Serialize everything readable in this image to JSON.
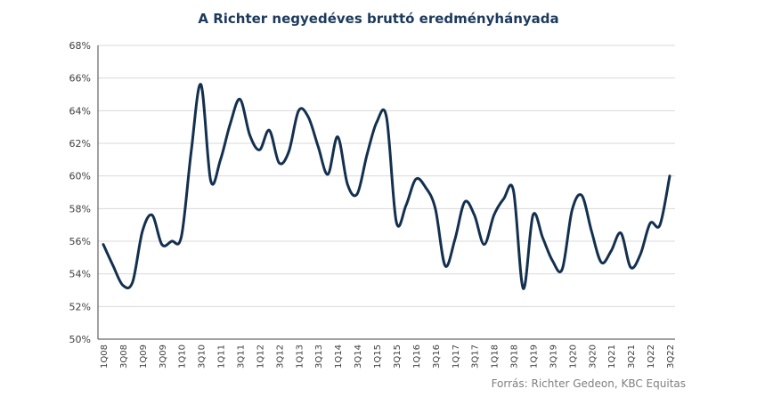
{
  "chart_data": {
    "type": "line",
    "title": "A Richter negyedéves bruttó eredményhányada",
    "xlabel": "",
    "ylabel": "",
    "ylim": [
      50,
      68
    ],
    "y_ticks": [
      "50%",
      "52%",
      "54%",
      "56%",
      "58%",
      "60%",
      "62%",
      "64%",
      "66%",
      "68%"
    ],
    "grid": "horizontal",
    "legend": "none",
    "x": [
      "1Q08",
      "2Q08",
      "3Q08",
      "4Q08",
      "1Q09",
      "2Q09",
      "3Q09",
      "4Q09",
      "1Q10",
      "2Q10",
      "3Q10",
      "4Q10",
      "1Q11",
      "2Q11",
      "3Q11",
      "4Q11",
      "1Q12",
      "2Q12",
      "3Q12",
      "4Q12",
      "1Q13",
      "2Q13",
      "3Q13",
      "4Q13",
      "1Q14",
      "2Q14",
      "3Q14",
      "4Q14",
      "1Q15",
      "2Q15",
      "3Q15",
      "4Q15",
      "1Q16",
      "2Q16",
      "3Q16",
      "4Q16",
      "1Q17",
      "2Q17",
      "3Q17",
      "4Q17",
      "1Q18",
      "2Q18",
      "3Q18",
      "4Q18",
      "1Q19",
      "2Q19",
      "3Q19",
      "4Q19",
      "1Q20",
      "2Q20",
      "3Q20",
      "4Q20",
      "1Q21",
      "2Q21",
      "3Q21",
      "4Q21",
      "1Q22",
      "2Q22",
      "3Q22"
    ],
    "x_tick_labels": [
      "1Q08",
      "3Q08",
      "1Q09",
      "3Q09",
      "1Q10",
      "3Q10",
      "1Q11",
      "3Q11",
      "1Q12",
      "3Q12",
      "1Q13",
      "3Q13",
      "1Q14",
      "3Q14",
      "1Q15",
      "3Q15",
      "1Q16",
      "3Q16",
      "1Q17",
      "3Q17",
      "1Q18",
      "3Q18",
      "1Q19",
      "3Q19",
      "1Q20",
      "3Q20",
      "1Q21",
      "3Q21",
      "1Q22",
      "3Q22"
    ],
    "series": [
      {
        "name": "",
        "color": "#14304f",
        "values": [
          55.8,
          54.5,
          53.3,
          53.5,
          56.6,
          57.6,
          55.8,
          56.0,
          56.3,
          61.5,
          65.6,
          59.7,
          61.0,
          63.2,
          64.7,
          62.5,
          61.6,
          62.8,
          60.8,
          61.5,
          64.0,
          63.6,
          61.8,
          60.1,
          62.4,
          59.5,
          58.9,
          61.3,
          63.3,
          63.6,
          57.2,
          58.2,
          59.8,
          59.3,
          58.0,
          54.5,
          56.1,
          58.4,
          57.6,
          55.8,
          57.6,
          58.6,
          59.1,
          53.1,
          57.6,
          56.2,
          54.8,
          54.3,
          57.9,
          58.8,
          56.6,
          54.7,
          55.4,
          56.5,
          54.4,
          55.2,
          57.1,
          57.0,
          60.0
        ]
      }
    ]
  },
  "source": "Forrás: Richter Gedeon, KBC Equitas"
}
